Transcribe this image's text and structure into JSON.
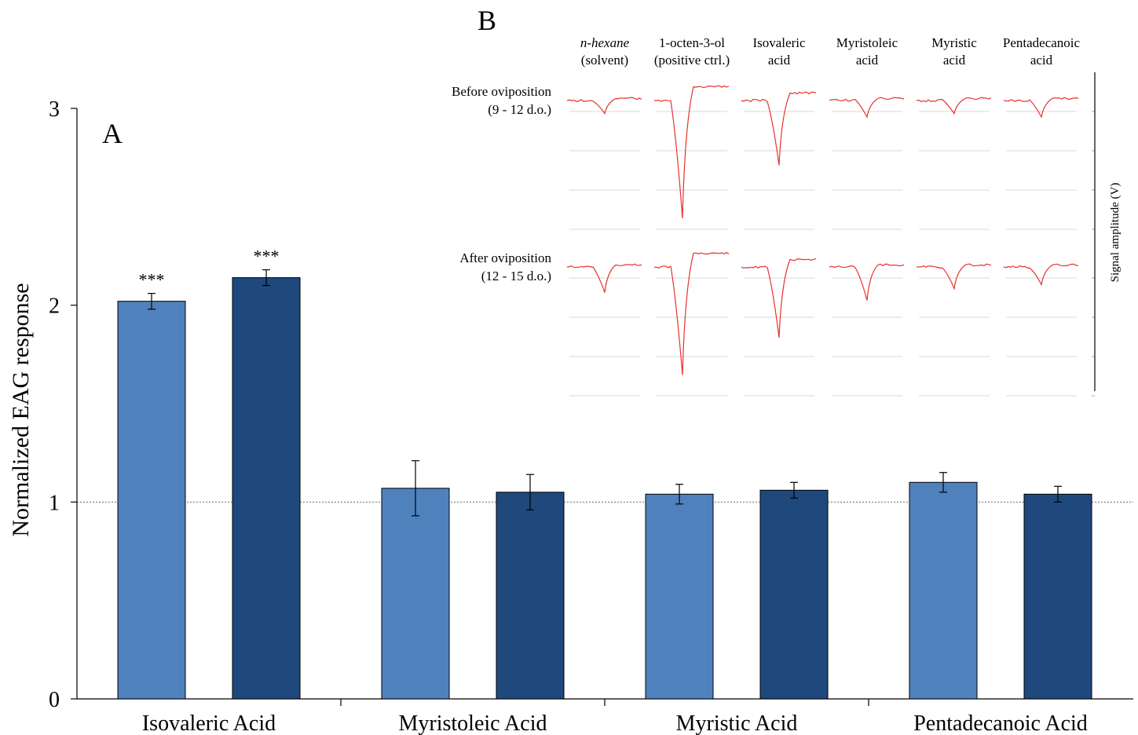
{
  "chart_data": [
    {
      "panel": "A",
      "type": "bar",
      "ylabel": "Normalized  EAG  response",
      "ylim": [
        0,
        3
      ],
      "yticks": [
        0,
        1,
        2,
        3
      ],
      "reference_line": 1,
      "categories": [
        "Isovaleric Acid",
        "Myristoleic Acid",
        "Myristic Acid",
        "Pentadecanoic Acid"
      ],
      "series": [
        {
          "color": "#4f81bd",
          "values": [
            2.02,
            1.07,
            1.04,
            1.1
          ],
          "errors": [
            0.04,
            0.14,
            0.05,
            0.05
          ],
          "annotations": [
            "***",
            "",
            "",
            ""
          ]
        },
        {
          "color": "#1f497d",
          "values": [
            2.14,
            1.05,
            1.06,
            1.04
          ],
          "errors": [
            0.04,
            0.09,
            0.04,
            0.04
          ],
          "annotations": [
            "***",
            "",
            "",
            ""
          ]
        }
      ]
    },
    {
      "panel": "B",
      "type": "line",
      "ylabel": "Signal amplitude (V)",
      "compounds": [
        {
          "line1": "n-hexane",
          "line2": "(solvent)"
        },
        {
          "line1": "1-octen-3-ol",
          "line2": "(positive ctrl.)"
        },
        {
          "line1": "Isovaleric",
          "line2": "acid"
        },
        {
          "line1": "Myristoleic",
          "line2": "acid"
        },
        {
          "line1": "Myristic",
          "line2": "acid"
        },
        {
          "line1": "Pentadecanoic",
          "line2": "acid"
        }
      ],
      "conditions": [
        {
          "line1": "Before oviposition",
          "line2": "(9 - 12 d.o.)",
          "depths": [
            0.33,
            3.0,
            1.65,
            0.42,
            0.33,
            0.42
          ]
        },
        {
          "line1": "After oviposition",
          "line2": "(12 - 15 d.o.)",
          "depths": [
            0.65,
            2.75,
            1.8,
            0.85,
            0.55,
            0.45
          ]
        }
      ]
    }
  ]
}
